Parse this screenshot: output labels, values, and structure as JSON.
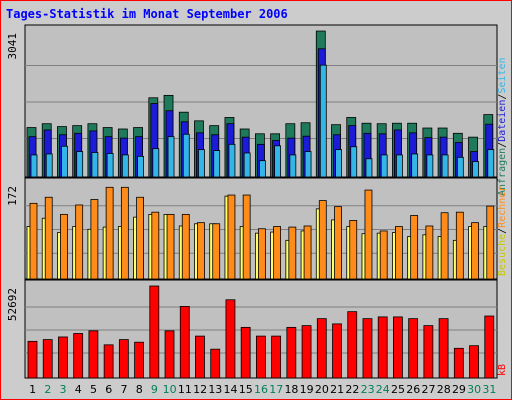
{
  "chart_data": [
    {
      "type": "bar",
      "title": "Tages-Statistik im Monat September 2006",
      "ymax_label": "3041",
      "ymax": 3041,
      "categories": [
        "1",
        "2",
        "3",
        "4",
        "5",
        "6",
        "7",
        "8",
        "9",
        "10",
        "11",
        "12",
        "13",
        "14",
        "15",
        "16",
        "17",
        "18",
        "19",
        "20",
        "21",
        "22",
        "23",
        "24",
        "25",
        "26",
        "27",
        "28",
        "29",
        "30",
        "31"
      ],
      "weekend_days": [
        "2",
        "3",
        "9",
        "10",
        "16",
        "17",
        "23",
        "24",
        "30",
        "31"
      ],
      "series": [
        {
          "name": "Anfragen",
          "color": "#1f7a5c",
          "values": [
            1030,
            1110,
            1050,
            1070,
            1110,
            1030,
            1000,
            1030,
            1650,
            1700,
            1350,
            1170,
            1070,
            1240,
            1000,
            900,
            900,
            1110,
            1130,
            3040,
            1090,
            1240,
            1120,
            1110,
            1120,
            1120,
            1020,
            1020,
            910,
            830,
            1300
          ]
        },
        {
          "name": "Dateien",
          "color": "#1b1bd8",
          "values": [
            840,
            980,
            880,
            910,
            960,
            840,
            810,
            840,
            1530,
            1380,
            1150,
            920,
            880,
            1110,
            830,
            680,
            760,
            810,
            850,
            2670,
            880,
            1070,
            910,
            900,
            980,
            920,
            820,
            830,
            720,
            530,
            1100
          ]
        },
        {
          "name": "Seiten",
          "color": "#33b5e8",
          "values": [
            460,
            480,
            640,
            530,
            510,
            490,
            460,
            430,
            590,
            840,
            890,
            570,
            550,
            680,
            500,
            340,
            650,
            460,
            530,
            2330,
            570,
            630,
            380,
            460,
            460,
            480,
            460,
            460,
            410,
            320,
            570
          ]
        }
      ]
    },
    {
      "type": "bar",
      "ymax_label": "172",
      "ymax": 172,
      "categories": [
        "1",
        "2",
        "3",
        "4",
        "5",
        "6",
        "7",
        "8",
        "9",
        "10",
        "11",
        "12",
        "13",
        "14",
        "15",
        "16",
        "17",
        "18",
        "19",
        "20",
        "21",
        "22",
        "23",
        "24",
        "25",
        "26",
        "27",
        "28",
        "29",
        "30",
        "31"
      ],
      "series": [
        {
          "name": "Besuche",
          "color": "#ffff66",
          "values": [
            95,
            110,
            84,
            95,
            90,
            94,
            95,
            112,
            117,
            117,
            96,
            100,
            100,
            150,
            95,
            83,
            85,
            70,
            87,
            127,
            107,
            95,
            82,
            83,
            84,
            77,
            80,
            77,
            70,
            95,
            95
          ]
        },
        {
          "name": "Rechner",
          "color": "#ff8c1a",
          "values": [
            137,
            148,
            117,
            134,
            144,
            166,
            166,
            148,
            121,
            117,
            117,
            102,
            100,
            152,
            152,
            91,
            95,
            94,
            96,
            142,
            131,
            106,
            161,
            87,
            95,
            115,
            96,
            120,
            121,
            102,
            132
          ]
        }
      ]
    },
    {
      "type": "bar",
      "ymax_label": "52692",
      "ymax": 52692,
      "categories": [
        "1",
        "2",
        "3",
        "4",
        "5",
        "6",
        "7",
        "8",
        "9",
        "10",
        "11",
        "12",
        "13",
        "14",
        "15",
        "16",
        "17",
        "18",
        "19",
        "20",
        "21",
        "22",
        "23",
        "24",
        "25",
        "26",
        "27",
        "28",
        "29",
        "30",
        "31"
      ],
      "series": [
        {
          "name": "kB",
          "color": "#ff0000",
          "values": [
            21000,
            22000,
            23500,
            25500,
            27000,
            19000,
            22000,
            20500,
            52692,
            27000,
            41000,
            24000,
            16500,
            44800,
            29000,
            24000,
            24000,
            29000,
            30000,
            34000,
            31000,
            38000,
            34000,
            35000,
            35000,
            34000,
            30000,
            34000,
            17000,
            18500,
            35500
          ]
        }
      ]
    }
  ],
  "legend": {
    "top": [
      "Anfragen",
      "/",
      "Dateien",
      "/",
      "Seiten"
    ],
    "middle": [
      "Besuche",
      "/",
      "Rechner"
    ],
    "bottom": [
      "kB"
    ]
  },
  "colors": {
    "title": "#0000ff",
    "weekday_label": "#000000",
    "weekend_label": "#00805a",
    "panel_bg": "#c0c0c0",
    "grid": "#808080",
    "frame_border": "#ff0000"
  }
}
